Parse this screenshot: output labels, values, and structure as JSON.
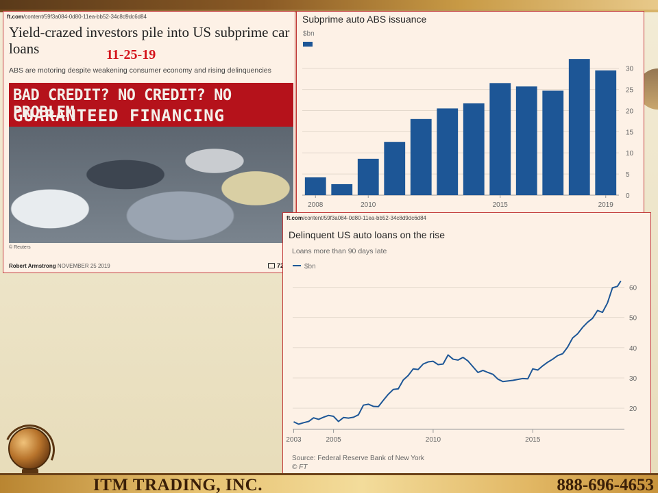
{
  "slide": {
    "company": "ITM TRADING, INC.",
    "phone": "888-696-4653",
    "logo_icon": "globe-books-icon"
  },
  "article": {
    "url_domain": "ft.com",
    "url_path": "/content/59f3a084-0d80-11ea-bb52-34c8d9dc6d84",
    "headline": "Yield-crazed investors pile into US subprime car loans",
    "date_overlay": "11-25-19",
    "standfirst": "ABS are motoring despite weakening consumer economy and rising delinquencies",
    "photo_sign_line1": "BAD CREDIT? NO CREDIT? NO PROBLEM",
    "photo_sign_line2": "GUARANTEED FINANCING",
    "photo_credit": "© Reuters",
    "author": "Robert Armstrong",
    "date": "NOVEMBER 25 2019",
    "comment_count": "72",
    "comment_icon": "comment-bubble-icon"
  },
  "line_panel": {
    "url_domain": "ft.com",
    "url_path": "/content/59f3a084-0d80-11ea-bb52-34c8d9dc6d84",
    "subtitle": "Loans more than 90 days late",
    "legend_label": "$bn",
    "source": "Source: Federal Reserve Bank of New York",
    "ft_mark": "© FT"
  },
  "chart_data": [
    {
      "type": "bar",
      "title": "Subprime auto ABS issuance",
      "ylabel": "$bn",
      "categories": [
        2008,
        2009,
        2010,
        2011,
        2012,
        2013,
        2014,
        2015,
        2016,
        2017,
        2018,
        2019
      ],
      "values": [
        4.2,
        2.6,
        8.6,
        12.6,
        18.0,
        20.5,
        21.7,
        26.5,
        25.7,
        24.7,
        32.2,
        29.5
      ],
      "x_tick_labels": [
        "2008",
        "2010",
        "2015",
        "2019"
      ],
      "x_tick_values": [
        2008,
        2010,
        2015,
        2019
      ],
      "ylim": [
        0,
        34
      ],
      "y_ticks": [
        0,
        5,
        10,
        15,
        20,
        25,
        30
      ],
      "color": "#1d5696",
      "grid": true,
      "y_axis_side": "right"
    },
    {
      "type": "line",
      "title": "Delinquent US auto loans on the rise",
      "ylabel": "$bn",
      "series": [
        {
          "name": "$bn",
          "x": [
            2003.0,
            2003.25,
            2003.5,
            2003.75,
            2004.0,
            2004.25,
            2004.5,
            2004.75,
            2005.0,
            2005.25,
            2005.5,
            2005.75,
            2006.0,
            2006.25,
            2006.5,
            2006.75,
            2007.0,
            2007.25,
            2007.5,
            2007.75,
            2008.0,
            2008.25,
            2008.5,
            2008.75,
            2009.0,
            2009.25,
            2009.5,
            2009.75,
            2010.0,
            2010.25,
            2010.5,
            2010.75,
            2011.0,
            2011.25,
            2011.5,
            2011.75,
            2012.0,
            2012.25,
            2012.5,
            2012.75,
            2013.0,
            2013.25,
            2013.5,
            2013.75,
            2014.0,
            2014.25,
            2014.5,
            2014.75,
            2015.0,
            2015.25,
            2015.5,
            2015.75,
            2016.0,
            2016.25,
            2016.5,
            2016.75,
            2017.0,
            2017.25,
            2017.5,
            2017.75,
            2018.0,
            2018.25,
            2018.5,
            2018.75,
            2019.0,
            2019.25
          ],
          "values": [
            15.5,
            14.7,
            15.2,
            15.6,
            16.8,
            16.3,
            17.0,
            17.6,
            17.3,
            15.6,
            16.9,
            16.7,
            17.0,
            17.8,
            21.0,
            21.3,
            20.6,
            20.5,
            22.6,
            24.6,
            26.2,
            26.4,
            29.3,
            30.8,
            33.0,
            32.8,
            34.6,
            35.3,
            35.5,
            34.4,
            34.6,
            37.6,
            36.2,
            35.9,
            36.8,
            35.6,
            33.7,
            31.8,
            32.5,
            31.8,
            31.2,
            29.6,
            28.8,
            29.0,
            29.2,
            29.5,
            29.8,
            29.7,
            33.0,
            32.6,
            34.0,
            35.2,
            36.2,
            37.4,
            38.0,
            40.2,
            43.2,
            44.6,
            46.7,
            48.4,
            49.7,
            52.3,
            51.7,
            54.8,
            59.8,
            60.3
          ]
        }
      ],
      "series_end": {
        "x": 2019.42,
        "y": 62.1
      },
      "x_tick_labels": [
        "2003",
        "2005",
        "2010",
        "2015"
      ],
      "x_tick_values": [
        2003,
        2005,
        2010,
        2015
      ],
      "xlim": [
        2002.95,
        2019.6
      ],
      "ylim": [
        13,
        66
      ],
      "y_ticks": [
        20,
        30,
        40,
        50,
        60
      ],
      "color": "#1d5696",
      "grid": true,
      "y_axis_side": "right"
    }
  ]
}
